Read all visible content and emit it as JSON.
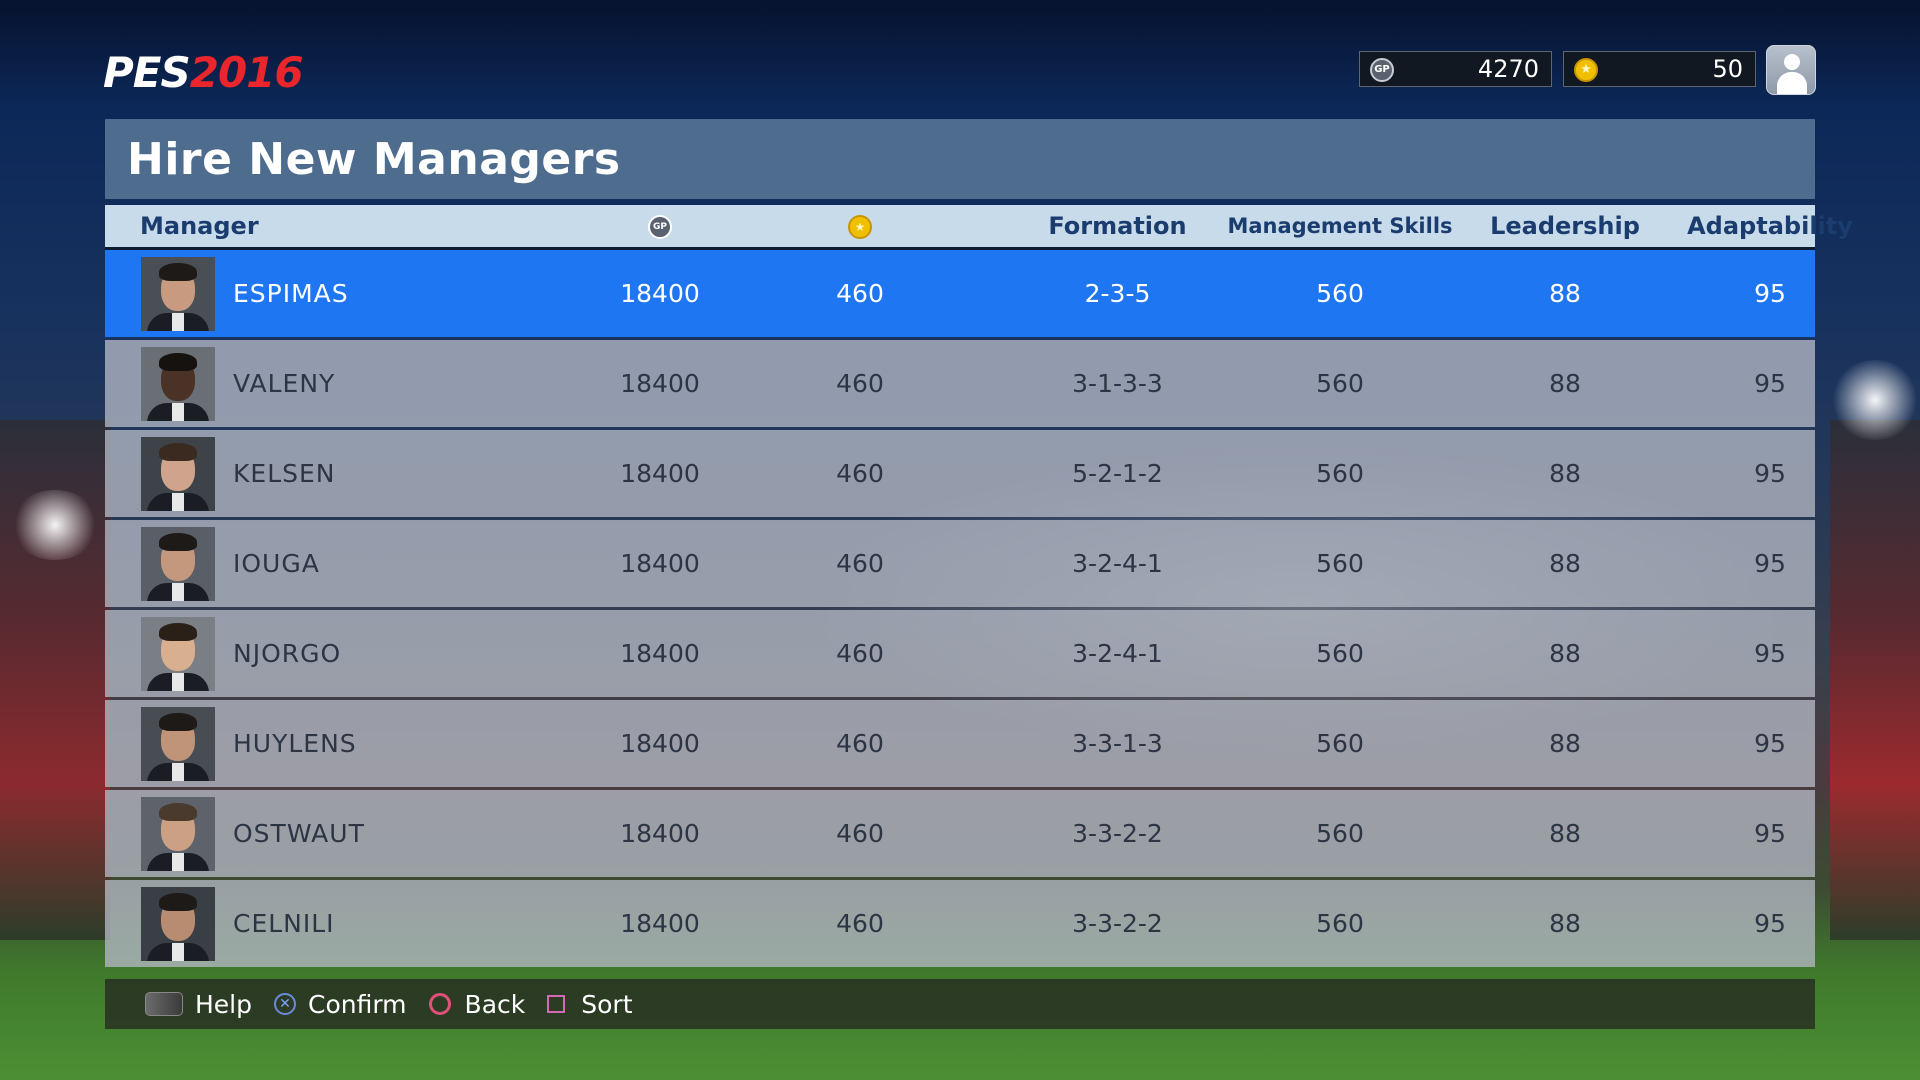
{
  "logo": {
    "part1": "PES",
    "part2": "2016"
  },
  "currency": {
    "gp_value": "4270",
    "coin_value": "50",
    "gp_icon_text": "GP"
  },
  "title": "Hire New Managers",
  "columns": {
    "manager": "Manager",
    "gp": "gp-icon",
    "coin": "coin-icon",
    "formation": "Formation",
    "management": "Management Skills",
    "leadership": "Leadership",
    "adaptability": "Adaptability"
  },
  "managers": [
    {
      "name": "ESPIMAS",
      "gp": "18400",
      "coins": "460",
      "formation": "2-3-5",
      "management": "560",
      "leadership": "88",
      "adaptability": "95",
      "selected": true
    },
    {
      "name": "VALENY",
      "gp": "18400",
      "coins": "460",
      "formation": "3-1-3-3",
      "management": "560",
      "leadership": "88",
      "adaptability": "95"
    },
    {
      "name": "KELSEN",
      "gp": "18400",
      "coins": "460",
      "formation": "5-2-1-2",
      "management": "560",
      "leadership": "88",
      "adaptability": "95"
    },
    {
      "name": "IOUGA",
      "gp": "18400",
      "coins": "460",
      "formation": "3-2-4-1",
      "management": "560",
      "leadership": "88",
      "adaptability": "95"
    },
    {
      "name": "NJORGO",
      "gp": "18400",
      "coins": "460",
      "formation": "3-2-4-1",
      "management": "560",
      "leadership": "88",
      "adaptability": "95"
    },
    {
      "name": "HUYLENS",
      "gp": "18400",
      "coins": "460",
      "formation": "3-3-1-3",
      "management": "560",
      "leadership": "88",
      "adaptability": "95"
    },
    {
      "name": "OSTWAUT",
      "gp": "18400",
      "coins": "460",
      "formation": "3-3-2-2",
      "management": "560",
      "leadership": "88",
      "adaptability": "95"
    },
    {
      "name": "CELNILI",
      "gp": "18400",
      "coins": "460",
      "formation": "3-3-2-2",
      "management": "560",
      "leadership": "88",
      "adaptability": "95"
    }
  ],
  "footer": {
    "help": "Help",
    "confirm": "Confirm",
    "back": "Back",
    "sort": "Sort"
  },
  "colors": {
    "selected_row": "#1f76f2",
    "title_bar": "#4e6c8e",
    "header": "#c8dbea",
    "logo_red": "#e8262b"
  }
}
